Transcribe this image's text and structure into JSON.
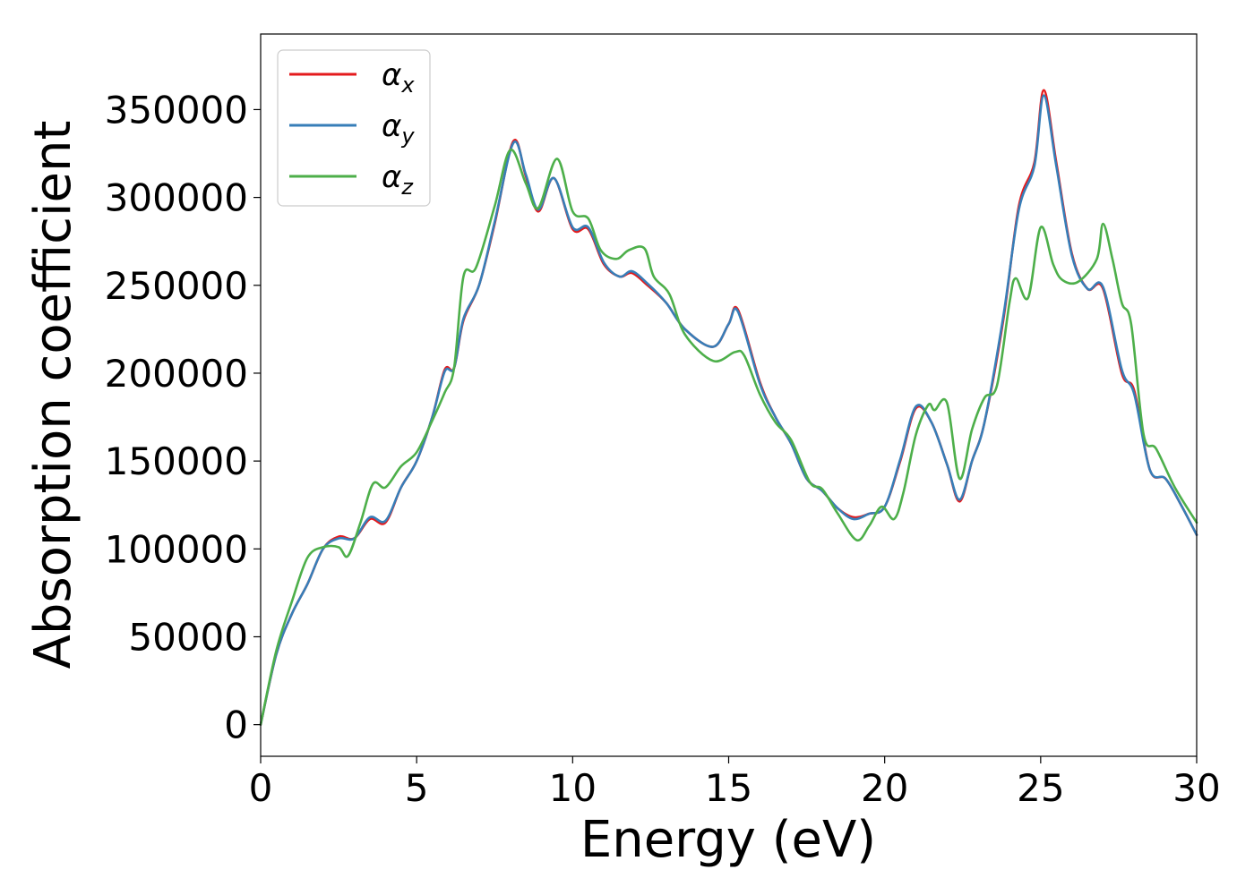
{
  "chart_data": {
    "type": "line",
    "title": "",
    "xlabel": "Energy (eV)",
    "ylabel": "Absorption coefficient",
    "xlim": [
      0,
      30
    ],
    "ylim": [
      -18000,
      393000
    ],
    "xticks": [
      0,
      5,
      10,
      15,
      20,
      25,
      30
    ],
    "xtick_labels": [
      "0",
      "5",
      "10",
      "15",
      "20",
      "25",
      "30"
    ],
    "yticks": [
      0,
      50000,
      100000,
      150000,
      200000,
      250000,
      300000,
      350000
    ],
    "ytick_labels": [
      "0",
      "50000",
      "100000",
      "150000",
      "200000",
      "250000",
      "300000",
      "350000"
    ],
    "grid": false,
    "legend_position": "top-left",
    "series": [
      {
        "name": "α",
        "subscript": "x",
        "color": "#e41a1c",
        "points": [
          [
            0,
            0
          ],
          [
            0.5,
            40000
          ],
          [
            1,
            63000
          ],
          [
            1.5,
            80000
          ],
          [
            2,
            100000
          ],
          [
            2.5,
            107000
          ],
          [
            3,
            106000
          ],
          [
            3.5,
            117000
          ],
          [
            4,
            115000
          ],
          [
            4.5,
            135000
          ],
          [
            5,
            150000
          ],
          [
            5.5,
            175000
          ],
          [
            5.9,
            202000
          ],
          [
            6.2,
            203000
          ],
          [
            6.5,
            230000
          ],
          [
            7,
            250000
          ],
          [
            7.5,
            285000
          ],
          [
            8.1,
            332000
          ],
          [
            8.5,
            312000
          ],
          [
            8.9,
            292000
          ],
          [
            9.4,
            311000
          ],
          [
            10,
            282000
          ],
          [
            10.5,
            282000
          ],
          [
            11,
            262000
          ],
          [
            11.5,
            255000
          ],
          [
            11.9,
            257000
          ],
          [
            12.4,
            250000
          ],
          [
            13,
            240000
          ],
          [
            13.6,
            225000
          ],
          [
            14.5,
            215000
          ],
          [
            15,
            228000
          ],
          [
            15.3,
            236000
          ],
          [
            16,
            195000
          ],
          [
            16.5,
            175000
          ],
          [
            17,
            160000
          ],
          [
            17.5,
            140000
          ],
          [
            18,
            133000
          ],
          [
            18.5,
            123000
          ],
          [
            19,
            118000
          ],
          [
            19.5,
            120000
          ],
          [
            20,
            124000
          ],
          [
            20.5,
            150000
          ],
          [
            21,
            180000
          ],
          [
            21.5,
            172000
          ],
          [
            22,
            148000
          ],
          [
            22.4,
            127000
          ],
          [
            22.8,
            150000
          ],
          [
            23.2,
            172000
          ],
          [
            23.8,
            230000
          ],
          [
            24.3,
            295000
          ],
          [
            24.8,
            320000
          ],
          [
            25.1,
            361000
          ],
          [
            25.5,
            320000
          ],
          [
            26,
            268000
          ],
          [
            26.5,
            248000
          ],
          [
            27,
            248000
          ],
          [
            27.6,
            200000
          ],
          [
            28,
            190000
          ],
          [
            28.5,
            145000
          ],
          [
            29,
            140000
          ],
          [
            29.5,
            125000
          ],
          [
            30,
            108000
          ]
        ]
      },
      {
        "name": "α",
        "subscript": "y",
        "color": "#377eb8",
        "points": [
          [
            0,
            0
          ],
          [
            0.5,
            40000
          ],
          [
            1,
            63000
          ],
          [
            1.5,
            80000
          ],
          [
            2,
            100000
          ],
          [
            2.5,
            106000
          ],
          [
            3,
            106000
          ],
          [
            3.5,
            118000
          ],
          [
            4,
            116000
          ],
          [
            4.5,
            135000
          ],
          [
            5,
            150000
          ],
          [
            5.5,
            175000
          ],
          [
            5.9,
            201000
          ],
          [
            6.2,
            203000
          ],
          [
            6.5,
            231000
          ],
          [
            7,
            250000
          ],
          [
            7.5,
            286000
          ],
          [
            8.1,
            331000
          ],
          [
            8.5,
            313000
          ],
          [
            8.9,
            293000
          ],
          [
            9.4,
            311000
          ],
          [
            10,
            283000
          ],
          [
            10.5,
            283000
          ],
          [
            11,
            263000
          ],
          [
            11.5,
            255000
          ],
          [
            11.9,
            258000
          ],
          [
            12.4,
            251000
          ],
          [
            13,
            240000
          ],
          [
            13.6,
            225000
          ],
          [
            14.5,
            215000
          ],
          [
            15,
            228000
          ],
          [
            15.3,
            235000
          ],
          [
            16,
            194000
          ],
          [
            16.5,
            175000
          ],
          [
            17,
            160000
          ],
          [
            17.5,
            140000
          ],
          [
            18,
            133000
          ],
          [
            18.5,
            123000
          ],
          [
            19,
            117000
          ],
          [
            19.5,
            120000
          ],
          [
            20,
            124000
          ],
          [
            20.5,
            151000
          ],
          [
            21,
            181000
          ],
          [
            21.5,
            172000
          ],
          [
            22,
            148000
          ],
          [
            22.4,
            128000
          ],
          [
            22.8,
            150000
          ],
          [
            23.2,
            172000
          ],
          [
            23.8,
            232000
          ],
          [
            24.3,
            293000
          ],
          [
            24.8,
            318000
          ],
          [
            25.1,
            358000
          ],
          [
            25.5,
            318000
          ],
          [
            26,
            267000
          ],
          [
            26.5,
            248000
          ],
          [
            27,
            249000
          ],
          [
            27.6,
            202000
          ],
          [
            28,
            188000
          ],
          [
            28.5,
            145000
          ],
          [
            29,
            140000
          ],
          [
            29.5,
            125000
          ],
          [
            30,
            108000
          ]
        ]
      },
      {
        "name": "α",
        "subscript": "z",
        "color": "#4daf4a",
        "points": [
          [
            0,
            0
          ],
          [
            0.5,
            42000
          ],
          [
            1,
            70000
          ],
          [
            1.5,
            95000
          ],
          [
            2,
            101000
          ],
          [
            2.5,
            101000
          ],
          [
            2.8,
            96000
          ],
          [
            3.2,
            115000
          ],
          [
            3.6,
            137000
          ],
          [
            4,
            135000
          ],
          [
            4.5,
            147000
          ],
          [
            5,
            155000
          ],
          [
            5.5,
            173000
          ],
          [
            5.9,
            189000
          ],
          [
            6.2,
            203000
          ],
          [
            6.5,
            255000
          ],
          [
            6.9,
            260000
          ],
          [
            7.5,
            295000
          ],
          [
            8,
            327000
          ],
          [
            8.5,
            308000
          ],
          [
            8.9,
            294000
          ],
          [
            9.5,
            322000
          ],
          [
            10,
            292000
          ],
          [
            10.5,
            288000
          ],
          [
            10.9,
            270000
          ],
          [
            11.4,
            265000
          ],
          [
            11.8,
            270000
          ],
          [
            12.3,
            271000
          ],
          [
            12.6,
            255000
          ],
          [
            13.1,
            245000
          ],
          [
            13.6,
            222000
          ],
          [
            14.5,
            207000
          ],
          [
            15.2,
            212000
          ],
          [
            15.5,
            210000
          ],
          [
            16,
            188000
          ],
          [
            16.5,
            172000
          ],
          [
            17,
            162000
          ],
          [
            17.6,
            138000
          ],
          [
            18,
            134000
          ],
          [
            18.5,
            120000
          ],
          [
            19.1,
            105000
          ],
          [
            19.5,
            113000
          ],
          [
            19.9,
            124000
          ],
          [
            20.3,
            117000
          ],
          [
            20.6,
            132000
          ],
          [
            21,
            165000
          ],
          [
            21.4,
            182000
          ],
          [
            21.6,
            179000
          ],
          [
            22,
            183000
          ],
          [
            22.4,
            140000
          ],
          [
            22.8,
            168000
          ],
          [
            23.2,
            186000
          ],
          [
            23.6,
            193000
          ],
          [
            24,
            240000
          ],
          [
            24.2,
            254000
          ],
          [
            24.6,
            243000
          ],
          [
            25,
            283000
          ],
          [
            25.4,
            262000
          ],
          [
            25.7,
            253000
          ],
          [
            26.2,
            252000
          ],
          [
            26.8,
            265000
          ],
          [
            27,
            285000
          ],
          [
            27.3,
            265000
          ],
          [
            27.6,
            240000
          ],
          [
            27.9,
            228000
          ],
          [
            28.3,
            165000
          ],
          [
            28.7,
            157000
          ],
          [
            29.3,
            135000
          ],
          [
            30,
            115000
          ]
        ]
      }
    ]
  }
}
